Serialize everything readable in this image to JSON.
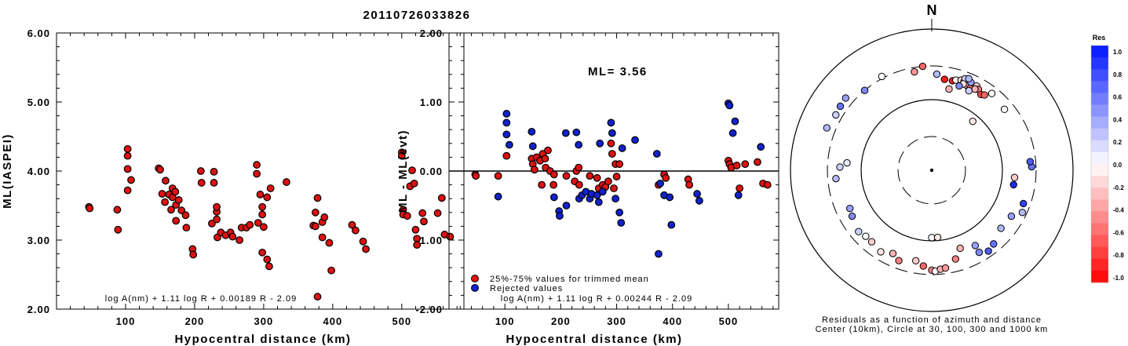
{
  "title": "20110726033826",
  "colors": {
    "used": "#dd1111",
    "rejected": "#1122cc"
  },
  "chart_data": [
    {
      "type": "scatter",
      "xlabel": "Hypocentral distance (km)",
      "ylabel": "ML(IASPEI)",
      "xlim": [
        0,
        590
      ],
      "ylim": [
        2.0,
        6.0
      ],
      "xticks": [
        "100",
        "200",
        "300",
        "400",
        "500"
      ],
      "yticks": [
        "2.00",
        "3.00",
        "4.00",
        "5.00",
        "6.00"
      ],
      "formula": "log A(nm) + 1.11 log R + 0.00189 R - 2.09",
      "series": [
        {
          "color": "#dd1111",
          "points": [
            [
              47,
              3.48
            ],
            [
              48,
              3.46
            ],
            [
              88,
              3.44
            ],
            [
              89,
              3.15
            ],
            [
              103,
              4.32
            ],
            [
              103,
              4.22
            ],
            [
              103,
              4.03
            ],
            [
              103,
              3.72
            ],
            [
              108,
              3.87
            ],
            [
              148,
              4.04
            ],
            [
              150,
              4.02
            ],
            [
              153,
              3.67
            ],
            [
              157,
              3.55
            ],
            [
              158,
              3.86
            ],
            [
              163,
              3.66
            ],
            [
              166,
              3.44
            ],
            [
              168,
              3.62
            ],
            [
              168,
              3.75
            ],
            [
              172,
              3.7
            ],
            [
              173,
              3.51
            ],
            [
              173,
              3.28
            ],
            [
              177,
              3.58
            ],
            [
              181,
              3.43
            ],
            [
              187,
              3.36
            ],
            [
              188,
              3.18
            ],
            [
              197,
              2.87
            ],
            [
              198,
              2.79
            ],
            [
              209,
              4.0
            ],
            [
              210,
              3.83
            ],
            [
              225,
              3.24
            ],
            [
              228,
              3.99
            ],
            [
              228,
              3.83
            ],
            [
              232,
              3.41
            ],
            [
              232,
              3.48
            ],
            [
              232,
              3.3
            ],
            [
              233,
              3.04
            ],
            [
              238,
              3.11
            ],
            [
              245,
              3.07
            ],
            [
              252,
              3.11
            ],
            [
              255,
              3.05
            ],
            [
              265,
              3.0
            ],
            [
              268,
              3.18
            ],
            [
              275,
              3.18
            ],
            [
              280,
              3.22
            ],
            [
              290,
              4.09
            ],
            [
              290,
              3.96
            ],
            [
              292,
              3.25
            ],
            [
              295,
              3.66
            ],
            [
              298,
              3.37
            ],
            [
              298,
              3.48
            ],
            [
              298,
              2.82
            ],
            [
              300,
              3.19
            ],
            [
              305,
              3.62
            ],
            [
              305,
              2.72
            ],
            [
              308,
              2.62
            ],
            [
              310,
              3.75
            ],
            [
              333,
              3.84
            ],
            [
              372,
              3.21
            ],
            [
              375,
              3.2
            ],
            [
              375,
              3.4
            ],
            [
              378,
              3.61
            ],
            [
              378,
              2.18
            ],
            [
              385,
              3.04
            ],
            [
              385,
              3.26
            ],
            [
              388,
              3.33
            ],
            [
              395,
              2.96
            ],
            [
              398,
              2.56
            ],
            [
              428,
              3.22
            ],
            [
              433,
              3.14
            ],
            [
              444,
              2.98
            ],
            [
              448,
              2.87
            ],
            [
              500,
              4.27
            ],
            [
              500,
              4.22
            ],
            [
              502,
              3.44
            ],
            [
              502,
              3.37
            ],
            [
              508,
              3.35
            ],
            [
              512,
              3.78
            ],
            [
              515,
              4.01
            ],
            [
              518,
              3.82
            ],
            [
              520,
              3.15
            ],
            [
              522,
              3.02
            ],
            [
              522,
              2.93
            ],
            [
              530,
              3.39
            ],
            [
              532,
              3.27
            ],
            [
              552,
              3.39
            ],
            [
              558,
              3.61
            ],
            [
              562,
              3.08
            ],
            [
              570,
              3.05
            ]
          ]
        }
      ]
    },
    {
      "type": "scatter",
      "xlabel": "Hypocentral distance (km)",
      "ylabel": "ML - ML(evt)",
      "xlim": [
        0,
        590
      ],
      "ylim": [
        -2.0,
        2.0
      ],
      "xticks": [
        "100",
        "200",
        "300",
        "400",
        "500"
      ],
      "yticks": [
        "-2.00",
        "-1.00",
        "0.00",
        "1.00",
        "2.00"
      ],
      "reference_line": 0,
      "annotation": "ML= 3.56",
      "formula": "log A(nm) + 1.11 log R + 0.00244 R - 2.09",
      "series": [
        {
          "name": "25%-75% values for trimmed mean",
          "color": "#dd1111",
          "points": [
            [
              47,
              -0.05
            ],
            [
              48,
              -0.07
            ],
            [
              88,
              -0.07
            ],
            [
              103,
              0.22
            ],
            [
              148,
              0.18
            ],
            [
              150,
              0.1
            ],
            [
              153,
              0.02
            ],
            [
              157,
              0.2
            ],
            [
              163,
              0.15
            ],
            [
              166,
              -0.2
            ],
            [
              168,
              0.25
            ],
            [
              172,
              0.18
            ],
            [
              173,
              0.05
            ],
            [
              177,
              0.3
            ],
            [
              181,
              0.0
            ],
            [
              187,
              -0.2
            ],
            [
              188,
              -0.05
            ],
            [
              210,
              -0.07
            ],
            [
              225,
              -0.15
            ],
            [
              228,
              0.0
            ],
            [
              232,
              0.05
            ],
            [
              233,
              -0.2
            ],
            [
              252,
              -0.07
            ],
            [
              265,
              -0.1
            ],
            [
              268,
              -0.25
            ],
            [
              275,
              -0.2
            ],
            [
              280,
              -0.23
            ],
            [
              285,
              -0.15
            ],
            [
              290,
              0.4
            ],
            [
              292,
              0.25
            ],
            [
              295,
              -0.25
            ],
            [
              298,
              0.1
            ],
            [
              300,
              -0.08
            ],
            [
              305,
              0.1
            ],
            [
              375,
              -0.2
            ],
            [
              385,
              -0.05
            ],
            [
              388,
              -0.1
            ],
            [
              428,
              -0.12
            ],
            [
              430,
              -0.2
            ],
            [
              500,
              0.15
            ],
            [
              502,
              0.1
            ],
            [
              505,
              0.05
            ],
            [
              515,
              0.08
            ],
            [
              520,
              -0.25
            ],
            [
              530,
              0.1
            ],
            [
              552,
              0.13
            ],
            [
              562,
              -0.18
            ],
            [
              570,
              -0.2
            ]
          ]
        },
        {
          "name": "Rejected values",
          "color": "#1122cc",
          "points": [
            [
              88,
              -0.37
            ],
            [
              103,
              0.83
            ],
            [
              103,
              0.7
            ],
            [
              103,
              0.53
            ],
            [
              108,
              0.38
            ],
            [
              148,
              0.57
            ],
            [
              150,
              0.36
            ],
            [
              188,
              -0.38
            ],
            [
              197,
              -0.58
            ],
            [
              198,
              -0.65
            ],
            [
              209,
              0.55
            ],
            [
              210,
              -0.5
            ],
            [
              228,
              0.56
            ],
            [
              232,
              0.38
            ],
            [
              233,
              -0.4
            ],
            [
              238,
              -0.35
            ],
            [
              245,
              -0.3
            ],
            [
              252,
              -0.4
            ],
            [
              255,
              -0.33
            ],
            [
              265,
              -0.35
            ],
            [
              268,
              -0.45
            ],
            [
              270,
              0.4
            ],
            [
              275,
              -0.3
            ],
            [
              290,
              0.7
            ],
            [
              292,
              0.55
            ],
            [
              298,
              -0.4
            ],
            [
              305,
              -0.6
            ],
            [
              308,
              -0.75
            ],
            [
              310,
              0.33
            ],
            [
              333,
              0.45
            ],
            [
              372,
              0.25
            ],
            [
              375,
              -1.2
            ],
            [
              378,
              -0.18
            ],
            [
              385,
              -0.35
            ],
            [
              395,
              -0.38
            ],
            [
              398,
              -0.78
            ],
            [
              444,
              -0.33
            ],
            [
              448,
              -0.43
            ],
            [
              500,
              0.98
            ],
            [
              502,
              0.95
            ],
            [
              508,
              0.55
            ],
            [
              512,
              0.72
            ],
            [
              518,
              -0.35
            ],
            [
              558,
              0.35
            ]
          ]
        }
      ]
    },
    {
      "type": "polar",
      "north_label": "N",
      "caption_line1": "Residuals as a function of azimuth and distance",
      "caption_line2": "Center (10km), Circle at 30, 100, 300 and 1000 km",
      "colorbar_title": "Res",
      "colorbar_ticks": [
        "1.0",
        "0.8",
        "0.6",
        "0.4",
        "0.2",
        "0.0",
        "-0.2",
        "-0.4",
        "-0.6",
        "-0.8",
        "-1.0"
      ],
      "rings_km": [
        30,
        100,
        300,
        1000
      ],
      "stations": [
        [
          8,
          200,
          -0.9
        ],
        [
          13,
          200,
          -0.9
        ],
        [
          12,
          150,
          -0.3
        ],
        [
          15,
          210,
          0.0
        ],
        [
          18,
          220,
          -0.2
        ],
        [
          20,
          215,
          -0.3
        ],
        [
          22,
          200,
          -0.4
        ],
        [
          25,
          190,
          -0.5
        ],
        [
          20,
          240,
          0.2
        ],
        [
          24,
          230,
          0.4
        ],
        [
          28,
          225,
          -0.2
        ],
        [
          30,
          210,
          -0.5
        ],
        [
          33,
          190,
          -0.7
        ],
        [
          35,
          200,
          -0.6
        ],
        [
          28,
          200,
          -0.3
        ],
        [
          20,
          200,
          -0.1
        ],
        [
          22,
          250,
          0.3
        ],
        [
          18,
          180,
          0.5
        ],
        [
          38,
          240,
          0.0
        ],
        [
          25,
          175,
          0.2
        ],
        [
          40,
          80,
          -0.1
        ],
        [
          50,
          220,
          0.0
        ],
        [
          320,
          300,
          0.5
        ],
        [
          332,
          320,
          0.0
        ],
        [
          355,
          300,
          -0.6
        ],
        [
          350,
          260,
          -0.4
        ],
        [
          3,
          230,
          0.3
        ],
        [
          310,
          390,
          0.4
        ],
        [
          292,
          400,
          0.3
        ],
        [
          300,
          370,
          0.2
        ],
        [
          305,
          380,
          0.6
        ],
        [
          272,
          200,
          0.2
        ],
        [
          265,
          230,
          0.3
        ],
        [
          275,
          160,
          0.1
        ],
        [
          240,
          200,
          0.5
        ],
        [
          245,
          190,
          0.4
        ],
        [
          225,
          210,
          0.0
        ],
        [
          230,
          225,
          0.2
        ],
        [
          220,
          210,
          -0.2
        ],
        [
          212,
          230,
          -0.1
        ],
        [
          205,
          200,
          -0.3
        ],
        [
          200,
          230,
          -0.5
        ],
        [
          190,
          200,
          -0.2
        ],
        [
          185,
          230,
          -0.6
        ],
        [
          180,
          260,
          -0.5
        ],
        [
          178,
          270,
          0.0
        ],
        [
          175,
          255,
          -0.3
        ],
        [
          172,
          250,
          -0.4
        ],
        [
          165,
          200,
          -0.5
        ],
        [
          160,
          150,
          -0.3
        ],
        [
          150,
          220,
          0.5
        ],
        [
          145,
          250,
          0.7
        ],
        [
          140,
          230,
          0.6
        ],
        [
          130,
          190,
          0.3
        ],
        [
          120,
          200,
          0.4
        ],
        [
          115,
          260,
          0.3
        ],
        [
          110,
          240,
          0.8
        ],
        [
          100,
          150,
          0.9
        ],
        [
          95,
          150,
          -0.2
        ],
        [
          88,
          260,
          0.6
        ],
        [
          85,
          250,
          0.7
        ],
        [
          180,
          90,
          0.0
        ],
        [
          175,
          90,
          -0.1
        ],
        [
          150,
          170,
          0.4
        ]
      ]
    }
  ]
}
